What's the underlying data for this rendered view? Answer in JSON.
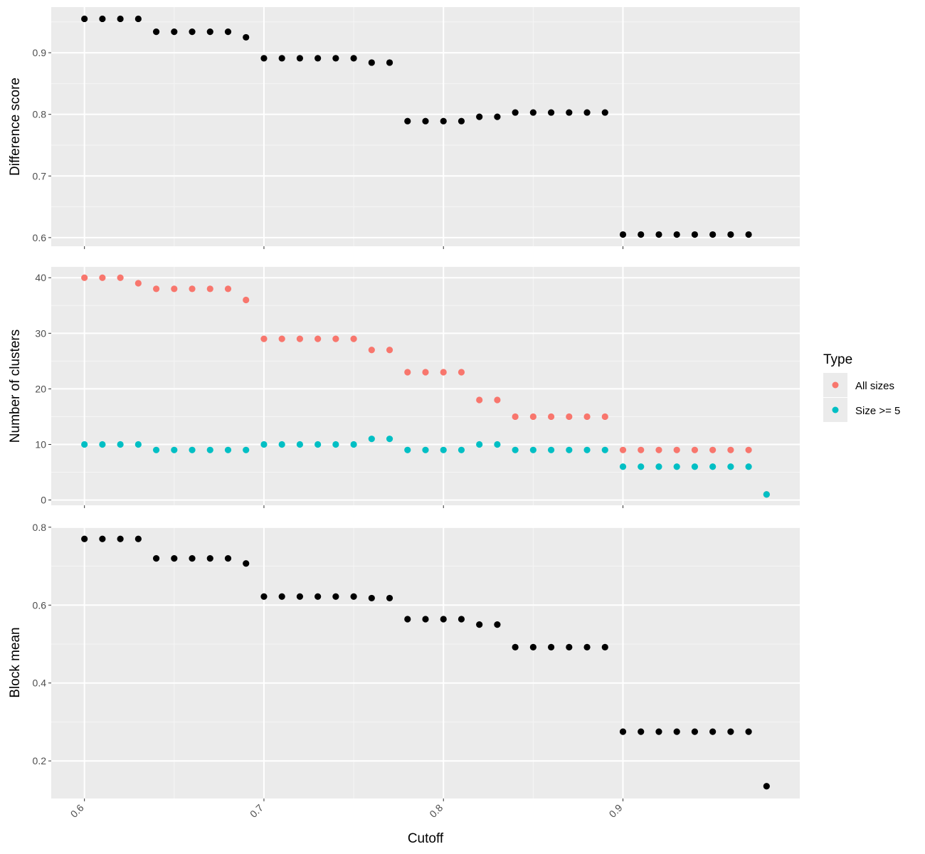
{
  "chart_data": {
    "type": "scatter",
    "xlabel": "Cutoff",
    "x_ticks": [
      "0.6",
      "0.7",
      "0.8",
      "0.9"
    ],
    "x": [
      0.6,
      0.61,
      0.62,
      0.63,
      0.64,
      0.65,
      0.66,
      0.67,
      0.68,
      0.69,
      0.7,
      0.71,
      0.72,
      0.73,
      0.74,
      0.75,
      0.76,
      0.77,
      0.78,
      0.79,
      0.8,
      0.81,
      0.82,
      0.83,
      0.84,
      0.85,
      0.86,
      0.87,
      0.88,
      0.89,
      0.9,
      0.91,
      0.92,
      0.93,
      0.94,
      0.95,
      0.96,
      0.97,
      0.98
    ],
    "xlim": [
      0.5815,
      0.9985
    ],
    "panels": [
      {
        "id": "difference",
        "ylabel": "Difference score",
        "ylim": [
          0.586,
          0.974
        ],
        "y_ticks": [
          "0.6",
          "0.7",
          "0.8",
          "0.9"
        ],
        "series": [
          {
            "color": "#000000",
            "values": [
              0.955,
              0.955,
              0.955,
              0.955,
              0.934,
              0.934,
              0.934,
              0.934,
              0.934,
              0.925,
              0.891,
              0.891,
              0.891,
              0.891,
              0.891,
              0.891,
              0.884,
              0.884,
              0.789,
              0.789,
              0.789,
              0.789,
              0.796,
              0.796,
              0.803,
              0.803,
              0.803,
              0.803,
              0.803,
              0.803,
              0.605,
              0.605,
              0.605,
              0.605,
              0.605,
              0.605,
              0.605,
              0.605,
              null
            ]
          }
        ]
      },
      {
        "id": "clusters",
        "ylabel": "Number of clusters",
        "ylim": [
          -0.95,
          41.95
        ],
        "y_ticks": [
          "0",
          "10",
          "20",
          "30",
          "40"
        ],
        "series": [
          {
            "name": "All sizes",
            "color": "#F8766D",
            "values": [
              40,
              40,
              40,
              39,
              38,
              38,
              38,
              38,
              38,
              36,
              29,
              29,
              29,
              29,
              29,
              29,
              27,
              27,
              23,
              23,
              23,
              23,
              18,
              18,
              15,
              15,
              15,
              15,
              15,
              15,
              9,
              9,
              9,
              9,
              9,
              9,
              9,
              9,
              1
            ]
          },
          {
            "name": "Size >= 5",
            "color": "#00BFC4",
            "values": [
              10,
              10,
              10,
              10,
              9,
              9,
              9,
              9,
              9,
              9,
              10,
              10,
              10,
              10,
              10,
              10,
              11,
              11,
              9,
              9,
              9,
              9,
              10,
              10,
              9,
              9,
              9,
              9,
              9,
              9,
              6,
              6,
              6,
              6,
              6,
              6,
              6,
              6,
              1
            ]
          }
        ]
      },
      {
        "id": "block",
        "ylabel": "Block mean",
        "ylim": [
          0.1035,
          0.8015
        ],
        "y_ticks": [
          "0.2",
          "0.4",
          "0.6",
          "0.8"
        ],
        "series": [
          {
            "color": "#000000",
            "values": [
              0.77,
              0.77,
              0.77,
              0.77,
              0.72,
              0.72,
              0.72,
              0.72,
              0.72,
              0.707,
              0.622,
              0.622,
              0.622,
              0.622,
              0.622,
              0.622,
              0.618,
              0.618,
              0.564,
              0.564,
              0.564,
              0.564,
              0.55,
              0.55,
              0.492,
              0.492,
              0.492,
              0.492,
              0.492,
              0.492,
              0.275,
              0.275,
              0.275,
              0.275,
              0.275,
              0.275,
              0.275,
              0.275,
              0.135
            ]
          }
        ]
      }
    ],
    "legend": {
      "title": "Type",
      "position": "right",
      "items": [
        {
          "label": "All sizes",
          "color": "#F8766D"
        },
        {
          "label": "Size >= 5",
          "color": "#00BFC4"
        }
      ]
    },
    "grid": true
  }
}
